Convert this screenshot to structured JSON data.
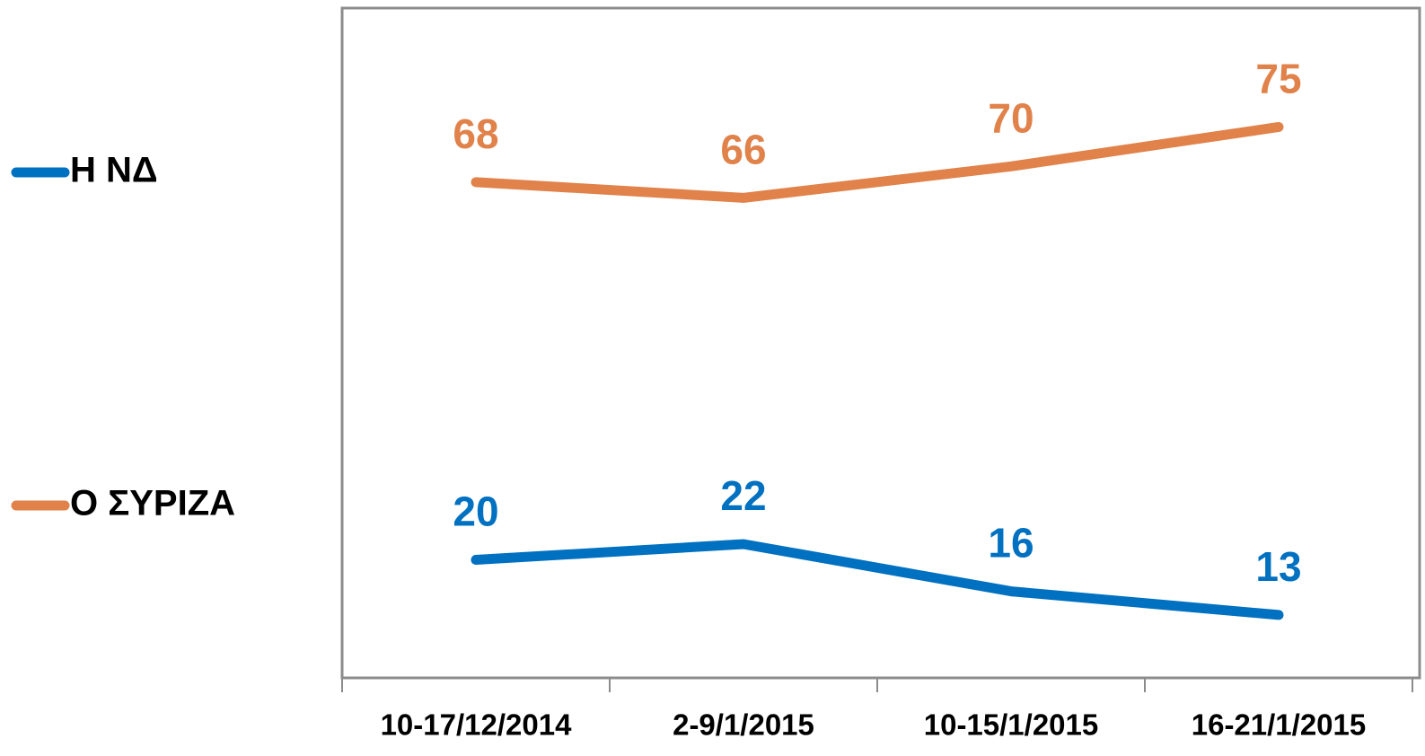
{
  "chart_data": {
    "type": "line",
    "categories": [
      "10-17/12/2014",
      "2-9/1/2015",
      "10-15/1/2015",
      "16-21/1/2015"
    ],
    "series": [
      {
        "name": "Η ΝΔ",
        "color": "#0070c0",
        "values": [
          20,
          22,
          16,
          13
        ]
      },
      {
        "name": "Ο ΣΥΡΙΖΑ",
        "color": "#e0824a",
        "values": [
          68,
          66,
          70,
          75
        ]
      }
    ],
    "ylim": [
      5,
      90
    ],
    "legend": "left"
  }
}
